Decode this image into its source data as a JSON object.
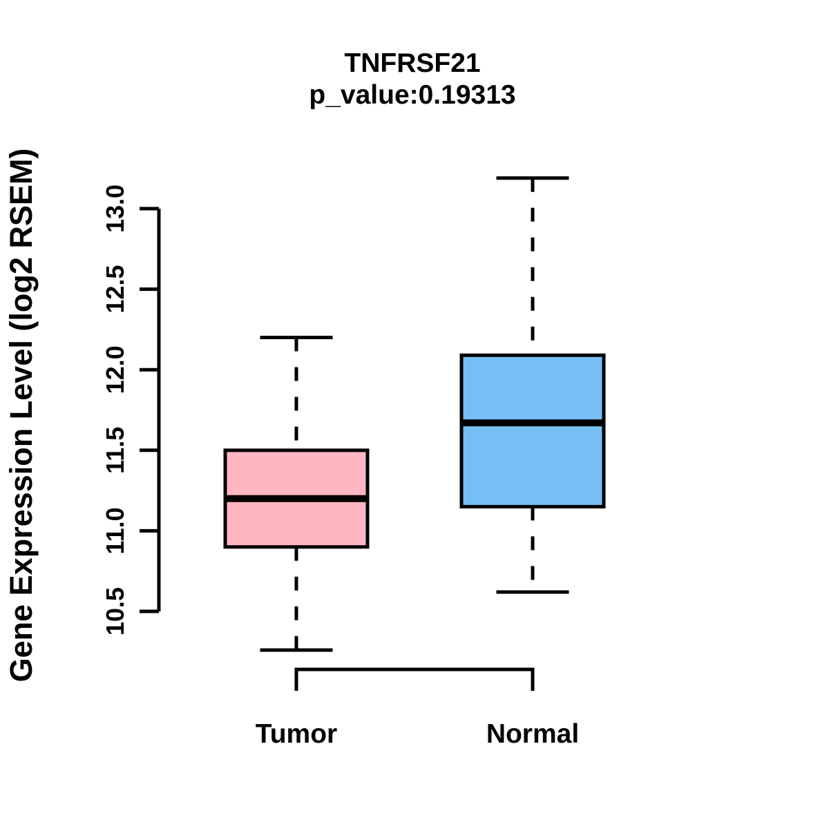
{
  "page": {
    "background_color": "#FFFFFF",
    "line_color": "#000000"
  },
  "chart_data": {
    "type": "boxplot",
    "title": "TNFRSF21",
    "subtitle": "p_value:0.19313",
    "p_value": 0.19313,
    "gene": "TNFRSF21",
    "ylabel": "Gene Expression Level (log2 RSEM)",
    "xlabel": "",
    "categories": [
      "Tumor",
      "Normal"
    ],
    "ytick_labels": [
      "10.5",
      "11.0",
      "11.5",
      "12.0",
      "12.5",
      "13.0"
    ],
    "yticks": [
      10.5,
      11.0,
      11.5,
      12.0,
      12.5,
      13.0
    ],
    "ylim": [
      10.5,
      13.0
    ],
    "grid": false,
    "legend": "none",
    "series": [
      {
        "name": "Tumor",
        "fill_color": "#FFB6C1",
        "whisker_low": 10.26,
        "q1": 10.9,
        "median": 11.2,
        "q3": 11.5,
        "whisker_high": 12.2
      },
      {
        "name": "Normal",
        "fill_color": "#75BFF5",
        "whisker_low": 10.62,
        "q1": 11.15,
        "median": 11.67,
        "q3": 12.09,
        "whisker_high": 13.19
      }
    ]
  }
}
